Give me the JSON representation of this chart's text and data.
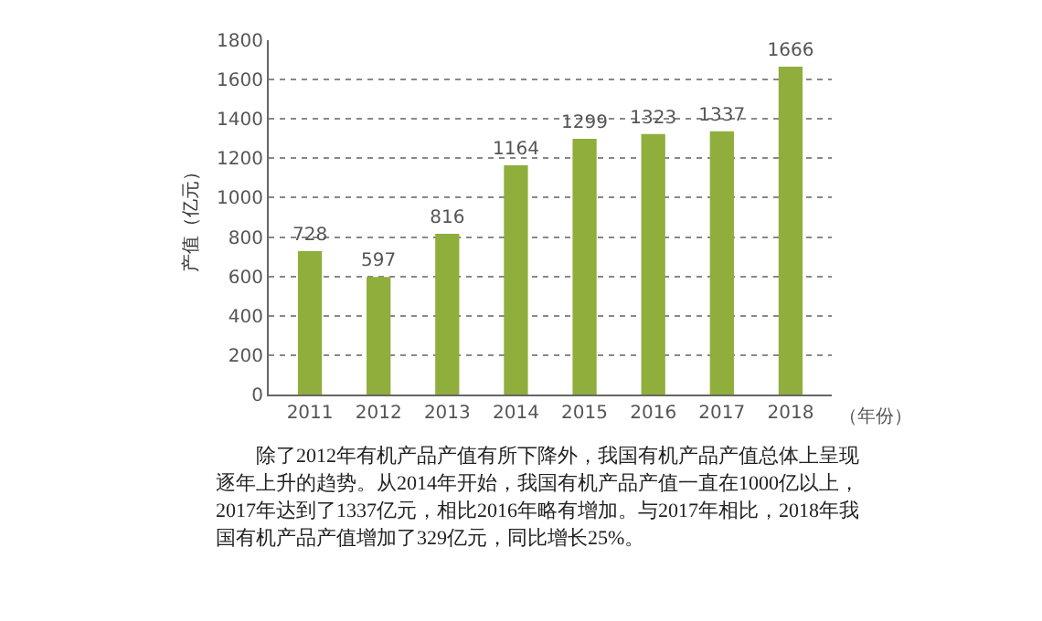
{
  "chart_data": {
    "type": "bar",
    "xlabel": "（年份）",
    "ylabel": "产值（亿元）",
    "categories": [
      "2011",
      "2012",
      "2013",
      "2014",
      "2015",
      "2016",
      "2017",
      "2018"
    ],
    "values": [
      728,
      597,
      816,
      1164,
      1299,
      1323,
      1337,
      1666
    ],
    "color": "#8fae3c",
    "ylim": [
      0,
      1800
    ],
    "yticks": [
      0,
      200,
      400,
      600,
      800,
      1000,
      1200,
      1400,
      1600,
      1800
    ],
    "grid": "y",
    "data_labels": true,
    "legend": false,
    "annotations": [
      "除了2012年有机产品产值有所下降外，我国有机产品产值总体上呈现逐年上升的趋势。从2014年开始，我国有机产品产值一直在1000亿以上，2017年达到了1337亿元，相比2016年略有增加。与2017年相比，2018年我国有机产品产值增加了329亿元，同比增长25%。"
    ]
  }
}
